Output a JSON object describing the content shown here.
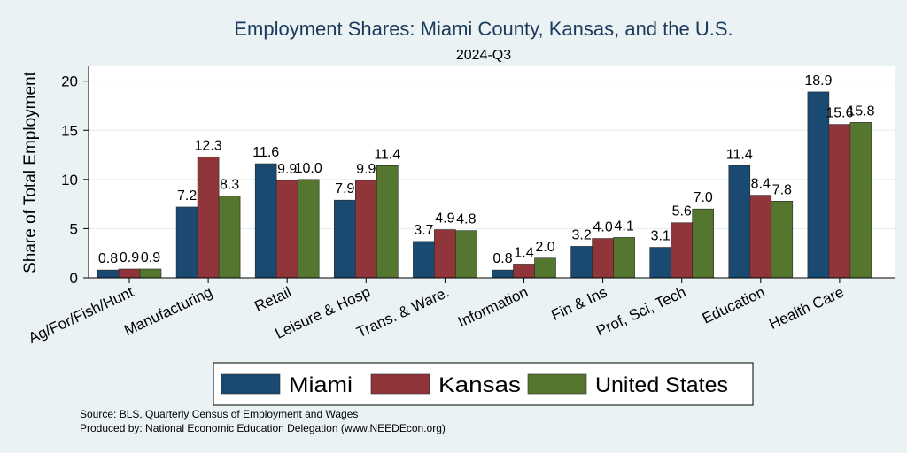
{
  "chart_data": {
    "type": "bar",
    "title": "Employment Shares: Miami County, Kansas, and the U.S.",
    "subtitle": "2024-Q3",
    "ylabel": "Share of Total Employment",
    "xlabel": "",
    "ylim": [
      0,
      21.5
    ],
    "yticks": [
      0,
      5,
      10,
      15,
      20
    ],
    "grid": true,
    "legend_position": "bottom",
    "categories": [
      "Ag/For/Fish/Hunt",
      "Manufacturing",
      "Retail",
      "Leisure & Hosp",
      "Trans. & Ware.",
      "Information",
      "Fin & Ins",
      "Prof, Sci, Tech",
      "Education",
      "Health Care"
    ],
    "series": [
      {
        "name": "Miami",
        "color": "#1a4a72",
        "values": [
          0.8,
          7.2,
          11.6,
          7.9,
          3.7,
          0.8,
          3.2,
          3.1,
          11.4,
          18.9
        ]
      },
      {
        "name": "Kansas",
        "color": "#903539",
        "values": [
          0.9,
          12.3,
          9.9,
          9.9,
          4.9,
          1.4,
          4.0,
          5.6,
          8.4,
          15.6
        ]
      },
      {
        "name": "United States",
        "color": "#55762f",
        "values": [
          0.9,
          8.3,
          10.0,
          11.4,
          4.8,
          2.0,
          4.1,
          7.0,
          7.8,
          15.8
        ]
      }
    ],
    "source_lines": [
      "Source: BLS, Quarterly Census of Employment and Wages",
      "Produced by: National Economic Education Delegation (www.NEEDEcon.org)"
    ]
  }
}
